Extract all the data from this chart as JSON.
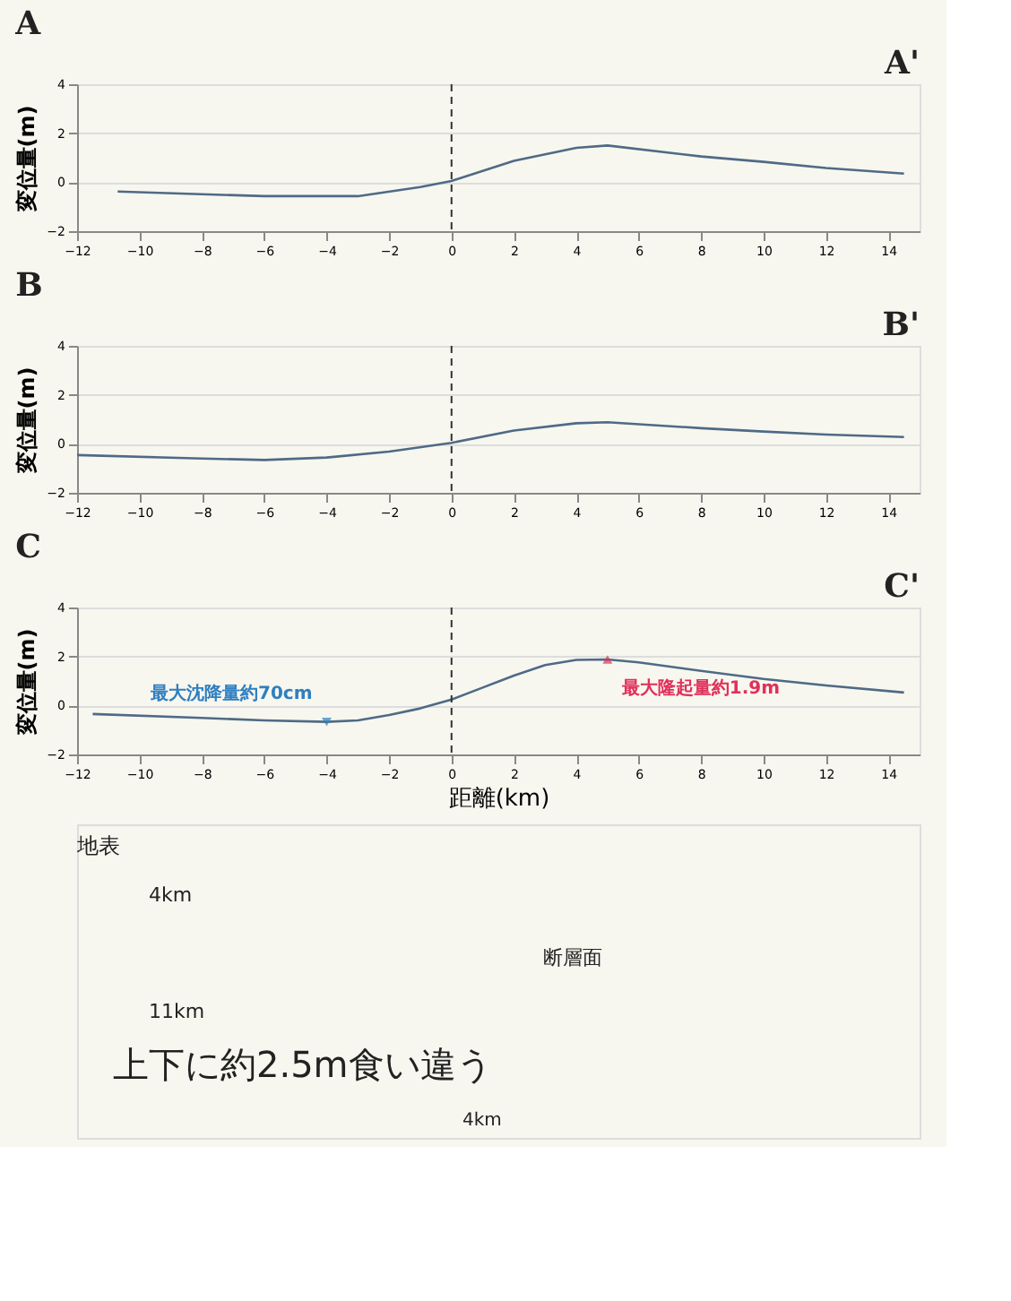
{
  "chart_data": [
    {
      "type": "line",
      "title": "A",
      "ylabel": "変位量(m)",
      "annotations": [
        "A'"
      ],
      "x": [
        -10.7,
        -6,
        -3,
        -1,
        0,
        2,
        4,
        5,
        8,
        10,
        12,
        14.5
      ],
      "series": [
        {
          "color": "#4f6a86",
          "values": [
            -0.38,
            -0.57,
            -0.57,
            -0.2,
            0.05,
            0.87,
            1.4,
            1.5,
            1.05,
            0.83,
            0.58,
            0.35
          ]
        }
      ],
      "xlim": [
        -12,
        15
      ],
      "xticks": [
        -12,
        -10,
        -8,
        -6,
        -4,
        -2,
        0,
        2,
        4,
        6,
        8,
        10,
        12,
        14
      ],
      "ylim": [
        -2,
        4
      ],
      "yticks": [
        -2,
        0,
        2,
        4
      ],
      "grid": "y",
      "ref_lines": [
        {
          "axis": "x",
          "value": 0,
          "color": "#333333",
          "line_style": "dashed"
        }
      ]
    },
    {
      "type": "line",
      "title": "B",
      "ylabel": "変位量(m)",
      "annotations": [
        "B'"
      ],
      "x": [
        -12,
        -8,
        -6,
        -4,
        -2,
        0,
        2,
        4,
        5,
        8,
        10,
        12,
        14.5
      ],
      "series": [
        {
          "color": "#4f6a86",
          "values": [
            -0.46,
            -0.6,
            -0.66,
            -0.56,
            -0.32,
            0.04,
            0.54,
            0.84,
            0.88,
            0.64,
            0.5,
            0.38,
            0.28
          ]
        }
      ],
      "xlim": [
        -12,
        15
      ],
      "xticks": [
        -12,
        -10,
        -8,
        -6,
        -4,
        -2,
        0,
        2,
        4,
        6,
        8,
        10,
        12,
        14
      ],
      "ylim": [
        -2,
        4
      ],
      "yticks": [
        -2,
        0,
        2,
        4
      ],
      "grid": "y",
      "ref_lines": [
        {
          "axis": "x",
          "value": 0,
          "color": "#333333",
          "line_style": "dashed"
        }
      ]
    },
    {
      "type": "line",
      "title": "C",
      "ylabel": "変位量(m)",
      "xlabel": "距離(km)",
      "annotations": [
        "C'",
        {
          "text": "最大沈降量約70cm",
          "x": -4,
          "y": -0.67
        },
        {
          "text": "最大隆起量約1.9m",
          "x": 5,
          "y": 1.88
        }
      ],
      "x": [
        -11.5,
        -8,
        -6,
        -4,
        -3,
        -2,
        -1,
        0,
        1,
        2,
        3,
        4,
        5,
        6,
        8,
        10,
        12,
        14.5
      ],
      "series": [
        {
          "color": "#4f6a86",
          "values": [
            -0.35,
            -0.51,
            -0.61,
            -0.67,
            -0.61,
            -0.39,
            -0.12,
            0.24,
            0.73,
            1.22,
            1.65,
            1.86,
            1.88,
            1.76,
            1.41,
            1.08,
            0.82,
            0.53
          ]
        }
      ],
      "xlim": [
        -12,
        15
      ],
      "xticks": [
        -12,
        -10,
        -8,
        -6,
        -4,
        -2,
        0,
        2,
        4,
        6,
        8,
        10,
        12,
        14
      ],
      "ylim": [
        -2,
        4
      ],
      "yticks": [
        -2,
        0,
        2,
        4
      ],
      "grid": "y",
      "ref_lines": [
        {
          "axis": "x",
          "value": 0,
          "color": "#333333",
          "line_style": "dashed"
        }
      ]
    },
    {
      "type": "other",
      "annotations": [
        "地表",
        "4km",
        "11km",
        "断層面",
        "上下に約2.5m食い違う",
        "4km"
      ]
    }
  ]
}
